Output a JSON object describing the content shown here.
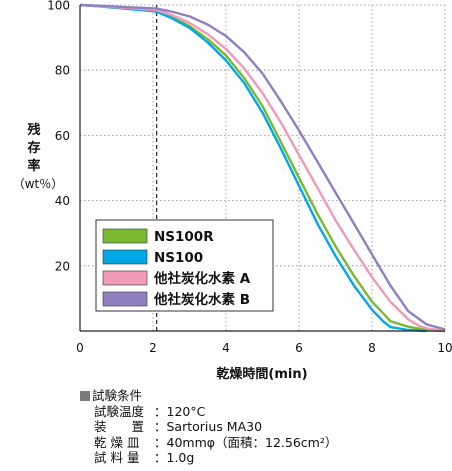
{
  "chart_data": {
    "type": "line",
    "title": "",
    "xlabel": "乾燥時間(min)",
    "ylabel": [
      "残",
      "存",
      "率",
      "（wt％）"
    ],
    "xlim": [
      0,
      10
    ],
    "ylim": [
      0,
      100
    ],
    "x_ticks": [
      0,
      2,
      4,
      6,
      8,
      10
    ],
    "y_ticks": [
      20,
      40,
      60,
      80,
      100
    ],
    "vertical_marker": {
      "x": 2.1,
      "style": "dashed"
    },
    "grid": "dotted",
    "legend_position": "center-left",
    "series": [
      {
        "name": "NS100R",
        "color": "#7ab833",
        "x": [
          0,
          0.5,
          1.0,
          1.5,
          2.0,
          2.1,
          2.5,
          3.0,
          3.5,
          4.0,
          4.5,
          5.0,
          5.5,
          6.0,
          6.5,
          7.0,
          7.5,
          8.0,
          8.3,
          8.5,
          9.0,
          9.5,
          10.0
        ],
        "values": [
          100,
          99.7,
          99.2,
          98.8,
          98.4,
          98.3,
          96.5,
          93.5,
          89.5,
          84.5,
          77.5,
          69,
          58,
          47,
          36,
          26,
          17,
          9,
          5.5,
          3,
          1.3,
          0.3,
          0
        ]
      },
      {
        "name": "NS100",
        "color": "#00a9e6",
        "x": [
          0,
          0.5,
          1.0,
          1.5,
          2.0,
          2.1,
          2.5,
          3.0,
          3.5,
          4.0,
          4.5,
          5.0,
          5.5,
          6.0,
          6.5,
          7.0,
          7.5,
          8.0,
          8.3,
          8.5,
          9.0,
          9.5
        ],
        "values": [
          100,
          99.6,
          99.1,
          98.6,
          98.1,
          97.9,
          96,
          93,
          88.5,
          83,
          76,
          67,
          56,
          44.5,
          33,
          23,
          14,
          6.5,
          3,
          1.2,
          0.3,
          0
        ]
      },
      {
        "name": "他社炭化水素 A",
        "color": "#f09ab8",
        "x": [
          0,
          0.5,
          1.0,
          1.5,
          2.0,
          2.1,
          2.5,
          3.0,
          3.5,
          4.0,
          4.5,
          5.0,
          5.5,
          6.0,
          6.5,
          7.0,
          7.5,
          8.0,
          8.5,
          9.0,
          9.3,
          9.5,
          10.0
        ],
        "values": [
          100,
          99.7,
          99.3,
          98.9,
          98.5,
          98.4,
          97,
          94.5,
          91,
          86.5,
          80.5,
          73,
          64,
          54,
          44,
          34,
          25,
          16.5,
          9,
          3.5,
          1.5,
          0.8,
          0
        ]
      },
      {
        "name": "他社炭化水素 B",
        "color": "#9080c0",
        "x": [
          0,
          0.5,
          1.0,
          1.5,
          2.0,
          2.1,
          2.5,
          3.0,
          3.5,
          4.0,
          4.5,
          5.0,
          5.5,
          6.0,
          6.5,
          7.0,
          7.5,
          8.0,
          8.5,
          9.0,
          9.5,
          10.0
        ],
        "values": [
          100,
          99.8,
          99.5,
          99.2,
          99,
          98.9,
          98,
          96.5,
          94,
          90.5,
          85.5,
          79,
          70.5,
          61.5,
          52,
          42.5,
          33,
          23.5,
          14,
          6,
          2,
          0.5
        ]
      }
    ]
  },
  "conditions": {
    "title": "試験条件",
    "rows": [
      {
        "key": "試験温度",
        "value": "：120°C"
      },
      {
        "key": "装　　置",
        "value": "：Sartorius MA30"
      },
      {
        "key": "乾 燥 皿",
        "value": "：40mmφ（面積：12.56cm²）"
      },
      {
        "key": "試 料 量",
        "value": "：1.0g"
      }
    ]
  }
}
